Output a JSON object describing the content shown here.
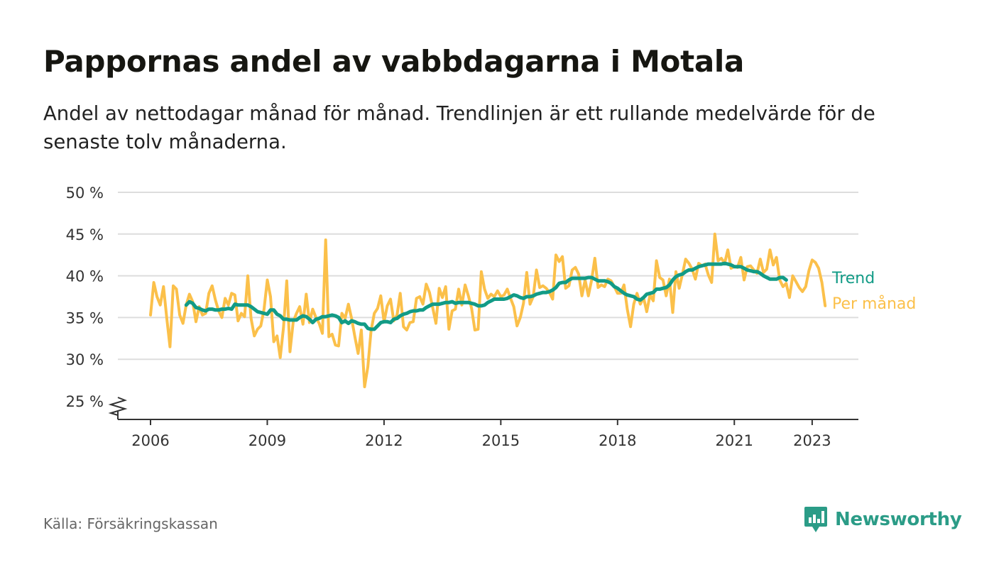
{
  "title": "Pappornas andel av vabbdagarna i Motala",
  "subtitle": "Andel av nettodagar månad för månad. Trendlinjen är ett rullande medelvärde för de senaste tolv månaderna.",
  "source": "Källa: Försäkringskassan",
  "brand": "Newsworthy",
  "chart_data": {
    "type": "line",
    "y_axis": {
      "min": 25,
      "max": 50,
      "ticks": [
        50,
        45,
        40,
        35,
        30,
        25
      ],
      "tick_labels": [
        "50 %",
        "45 %",
        "40 %",
        "35 %",
        "30 %",
        "25 %"
      ],
      "broken_axis": true
    },
    "x_axis": {
      "min": 2006.0,
      "max": 2023.5,
      "ticks": [
        2006,
        2009,
        2012,
        2015,
        2018,
        2021,
        2023
      ],
      "tick_labels": [
        "2006",
        "2009",
        "2012",
        "2015",
        "2018",
        "2021",
        "2023"
      ]
    },
    "grid": true,
    "colors": {
      "monthly": "#fbc04a",
      "trend": "#129b86",
      "grid": "#dddddd",
      "axis": "#333333"
    },
    "series": [
      {
        "name": "Per månad",
        "start": 2006.0,
        "step_months": 1,
        "values": [
          35.3,
          39.2,
          37.5,
          36.5,
          38.7,
          35.0,
          31.5,
          38.8,
          38.4,
          35.3,
          34.3,
          36.5,
          37.8,
          36.9,
          34.5,
          36.3,
          35.3,
          35.5,
          37.9,
          38.8,
          37.1,
          35.8,
          35.0,
          37.3,
          36.5,
          37.9,
          37.7,
          34.6,
          35.5,
          35.1,
          40.0,
          34.9,
          32.8,
          33.6,
          34.0,
          36.0,
          39.5,
          37.5,
          32.1,
          32.8,
          30.2,
          33.8,
          39.4,
          30.9,
          34.5,
          35.5,
          36.3,
          34.2,
          37.8,
          34.4,
          36.0,
          35.0,
          34.3,
          33.1,
          44.3,
          32.7,
          33.0,
          31.7,
          31.6,
          35.5,
          34.9,
          36.6,
          34.9,
          32.7,
          30.7,
          33.5,
          26.7,
          29.1,
          33.4,
          35.5,
          36.1,
          37.6,
          34.5,
          36.4,
          37.2,
          34.6,
          35.3,
          37.9,
          33.9,
          33.5,
          34.4,
          34.5,
          37.3,
          37.5,
          36.6,
          39.0,
          38.0,
          36.2,
          34.3,
          38.5,
          37.4,
          38.7,
          33.6,
          35.8,
          36.0,
          38.4,
          36.5,
          38.9,
          37.6,
          36.1,
          33.5,
          33.6,
          40.5,
          38.4,
          37.3,
          37.8,
          37.5,
          38.2,
          37.5,
          37.7,
          38.4,
          37.3,
          36.3,
          34.0,
          35.0,
          36.7,
          40.4,
          36.6,
          37.5,
          40.7,
          38.6,
          38.8,
          38.5,
          38.0,
          37.2,
          42.5,
          41.7,
          42.3,
          38.5,
          38.8,
          40.7,
          41.0,
          40.2,
          37.6,
          39.5,
          37.6,
          39.5,
          42.1,
          38.6,
          38.9,
          38.7,
          39.6,
          39.4,
          38.7,
          37.9,
          37.9,
          38.9,
          36.0,
          33.9,
          36.6,
          37.9,
          36.6,
          37.4,
          35.7,
          37.7,
          37.0,
          41.8,
          39.8,
          39.5,
          37.6,
          39.6,
          35.6,
          40.5,
          38.5,
          40.2,
          42.0,
          41.5,
          40.8,
          39.6,
          41.5,
          41.2,
          41.4,
          40.1,
          39.2,
          45.0,
          41.8,
          42.1,
          41.5,
          43.1,
          40.9,
          41.1,
          41.0,
          42.2,
          39.5,
          41.1,
          41.2,
          40.7,
          40.3,
          42.0,
          40.4,
          40.8,
          43.1,
          41.3,
          42.2,
          39.5,
          38.7,
          39.1,
          37.4,
          40.0,
          39.3,
          38.6,
          38.1,
          38.7,
          40.6,
          41.9,
          41.6,
          40.9,
          39.2,
          36.4
        ]
      },
      {
        "name": "Trend",
        "start": 2006.917,
        "step_months": 1,
        "values": [
          36.5,
          36.9,
          36.7,
          36.2,
          36.1,
          35.9,
          35.8,
          36.0,
          36.0,
          35.9,
          35.9,
          36.0,
          36.0,
          36.1,
          36.0,
          36.6,
          36.5,
          36.5,
          36.5,
          36.5,
          36.3,
          36.0,
          35.7,
          35.6,
          35.5,
          35.4,
          35.9,
          35.9,
          35.4,
          35.2,
          34.8,
          34.8,
          34.7,
          34.7,
          34.7,
          35.0,
          35.2,
          35.1,
          34.8,
          34.4,
          34.8,
          34.9,
          35.1,
          35.1,
          35.2,
          35.3,
          35.2,
          35.0,
          34.4,
          34.6,
          34.3,
          34.6,
          34.5,
          34.3,
          34.2,
          34.2,
          33.7,
          33.6,
          33.6,
          34.0,
          34.4,
          34.5,
          34.5,
          34.4,
          34.8,
          34.9,
          35.2,
          35.4,
          35.5,
          35.7,
          35.8,
          35.8,
          35.9,
          35.9,
          36.2,
          36.4,
          36.6,
          36.6,
          36.6,
          36.7,
          36.8,
          36.8,
          36.9,
          36.7,
          36.8,
          36.8,
          36.8,
          36.8,
          36.7,
          36.6,
          36.4,
          36.4,
          36.5,
          36.8,
          37.0,
          37.2,
          37.2,
          37.2,
          37.2,
          37.3,
          37.5,
          37.7,
          37.6,
          37.4,
          37.3,
          37.5,
          37.5,
          37.6,
          37.8,
          37.9,
          38.0,
          38.0,
          38.1,
          38.3,
          38.6,
          39.1,
          39.2,
          39.2,
          39.5,
          39.7,
          39.7,
          39.7,
          39.7,
          39.7,
          39.8,
          39.8,
          39.6,
          39.4,
          39.4,
          39.4,
          39.3,
          39.1,
          38.7,
          38.5,
          38.2,
          37.9,
          37.7,
          37.6,
          37.5,
          37.2,
          37.1,
          37.4,
          37.8,
          37.9,
          38.0,
          38.4,
          38.4,
          38.5,
          38.6,
          38.9,
          39.5,
          39.9,
          40.1,
          40.2,
          40.5,
          40.7,
          40.7,
          40.9,
          41.1,
          41.2,
          41.3,
          41.4,
          41.4,
          41.4,
          41.4,
          41.4,
          41.5,
          41.4,
          41.3,
          41.1,
          41.1,
          41.1,
          40.9,
          40.7,
          40.6,
          40.5,
          40.5,
          40.3,
          40.0,
          39.8,
          39.6,
          39.6,
          39.6,
          39.8,
          39.8,
          39.5
        ]
      }
    ]
  }
}
